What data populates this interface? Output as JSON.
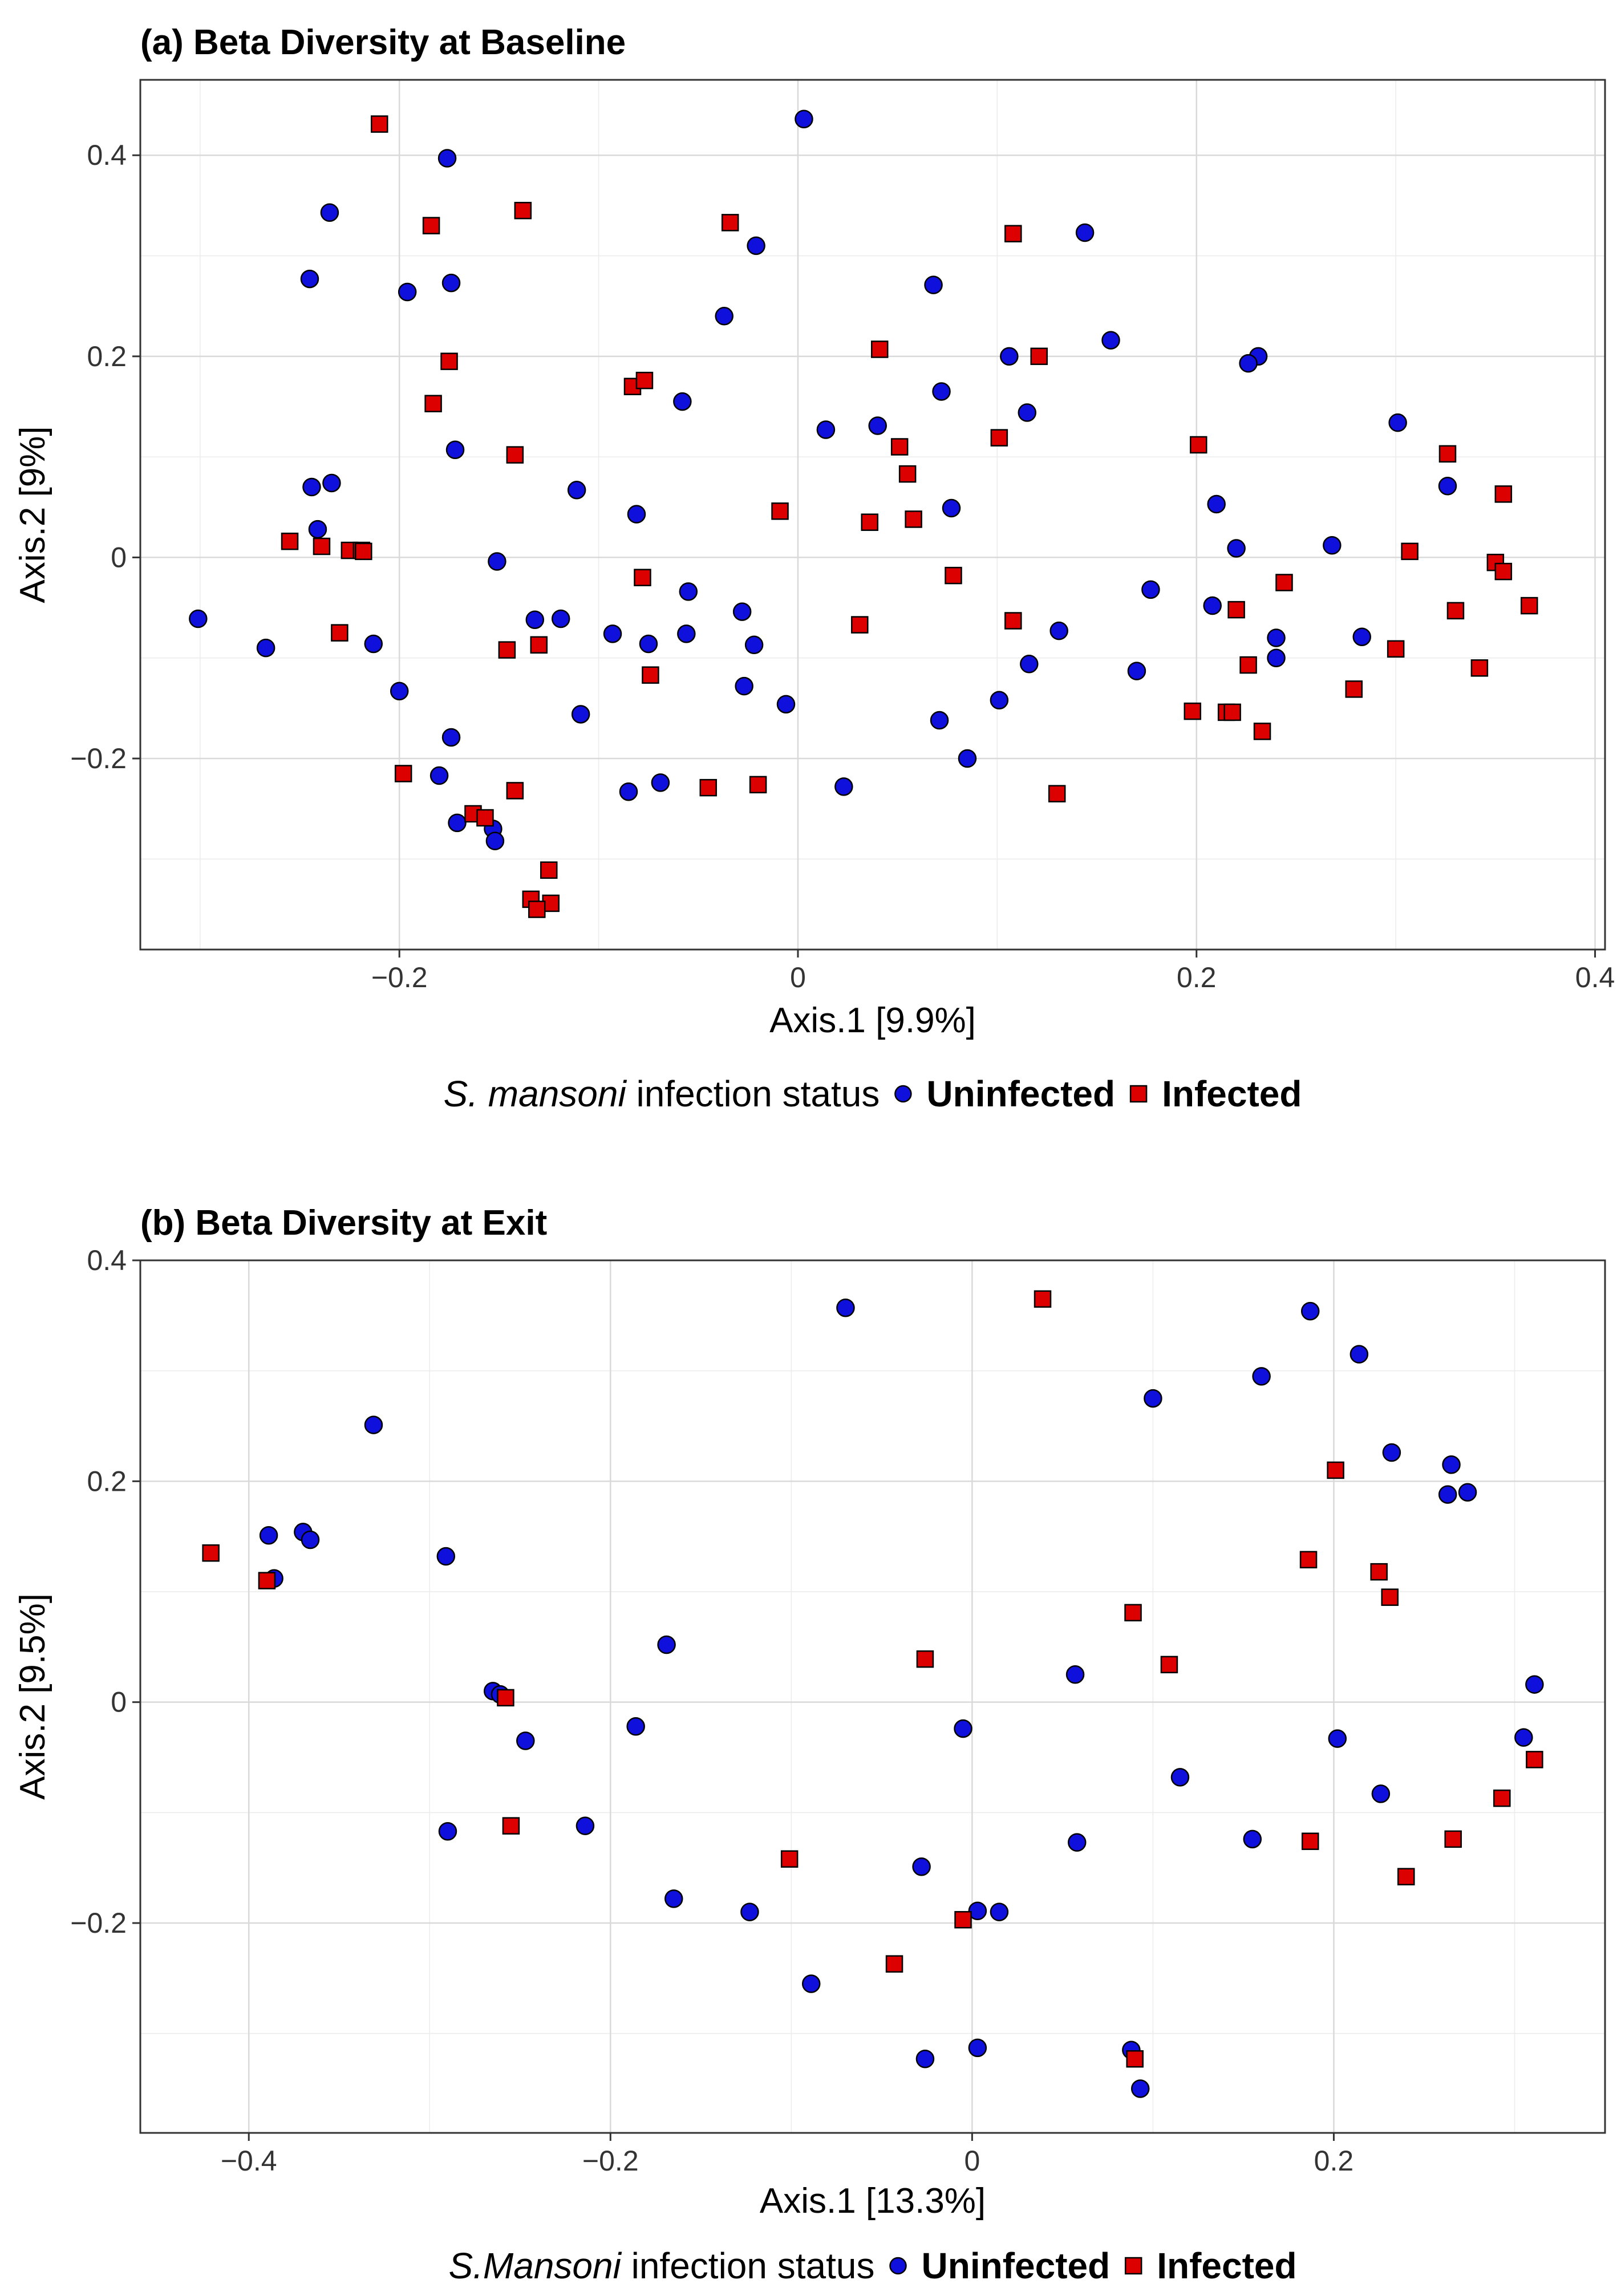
{
  "colors": {
    "uninfected": "#1010dd",
    "infected": "#dd0000",
    "outline": "#000000"
  },
  "chart_data": [
    {
      "type": "scatter",
      "title": "(a) Beta Diversity at Baseline",
      "xlabel": "Axis.1   [9.9%]",
      "ylabel": "Axis.2   [9%]",
      "xlim": [
        -0.33,
        0.405
      ],
      "ylim": [
        -0.39,
        0.475
      ],
      "xticks": [
        -0.2,
        0,
        0.2,
        0.4
      ],
      "xtick_labels": [
        "−0.2",
        "0",
        "0.2",
        "0.4"
      ],
      "yticks": [
        -0.2,
        0,
        0.2,
        0.4
      ],
      "ytick_labels": [
        "−0.2",
        "0",
        "0.2",
        "0.4"
      ],
      "legend": {
        "title_italic": "S. mansoni",
        "title_rest": " infection status",
        "items": [
          "Uninfected",
          "Infected"
        ]
      },
      "series": [
        {
          "name": "Uninfected",
          "marker": "circle",
          "points": [
            [
              0.003,
              0.436
            ],
            [
              -0.176,
              0.397
            ],
            [
              -0.235,
              0.343
            ],
            [
              0.144,
              0.323
            ],
            [
              -0.021,
              0.31
            ],
            [
              -0.245,
              0.277
            ],
            [
              -0.174,
              0.273
            ],
            [
              0.068,
              0.271
            ],
            [
              -0.196,
              0.264
            ],
            [
              -0.037,
              0.24
            ],
            [
              0.157,
              0.216
            ],
            [
              0.106,
              0.2
            ],
            [
              0.231,
              0.2
            ],
            [
              0.226,
              0.193
            ],
            [
              0.072,
              0.165
            ],
            [
              -0.058,
              0.155
            ],
            [
              0.115,
              0.144
            ],
            [
              0.301,
              0.134
            ],
            [
              0.04,
              0.131
            ],
            [
              0.014,
              0.127
            ],
            [
              -0.172,
              0.107
            ],
            [
              -0.244,
              0.07
            ],
            [
              -0.234,
              0.074
            ],
            [
              -0.111,
              0.067
            ],
            [
              0.326,
              0.071
            ],
            [
              0.21,
              0.053
            ],
            [
              0.077,
              0.049
            ],
            [
              -0.081,
              0.043
            ],
            [
              -0.241,
              0.028
            ],
            [
              0.268,
              0.012
            ],
            [
              0.22,
              0.009
            ],
            [
              -0.151,
              -0.004
            ],
            [
              0.177,
              -0.032
            ],
            [
              -0.055,
              -0.034
            ],
            [
              0.208,
              -0.048
            ],
            [
              -0.028,
              -0.054
            ],
            [
              -0.132,
              -0.062
            ],
            [
              -0.119,
              -0.061
            ],
            [
              0.131,
              -0.073
            ],
            [
              -0.093,
              -0.076
            ],
            [
              -0.056,
              -0.076
            ],
            [
              0.24,
              -0.08
            ],
            [
              0.283,
              -0.079
            ],
            [
              -0.075,
              -0.086
            ],
            [
              -0.213,
              -0.086
            ],
            [
              -0.022,
              -0.087
            ],
            [
              -0.301,
              -0.061
            ],
            [
              -0.267,
              -0.09
            ],
            [
              0.24,
              -0.1
            ],
            [
              0.116,
              -0.106
            ],
            [
              0.17,
              -0.113
            ],
            [
              -0.027,
              -0.128
            ],
            [
              -0.2,
              -0.133
            ],
            [
              0.101,
              -0.142
            ],
            [
              -0.006,
              -0.146
            ],
            [
              -0.109,
              -0.156
            ],
            [
              0.071,
              -0.162
            ],
            [
              -0.174,
              -0.179
            ],
            [
              0.085,
              -0.2
            ],
            [
              -0.18,
              -0.217
            ],
            [
              -0.069,
              -0.224
            ],
            [
              0.023,
              -0.228
            ],
            [
              -0.085,
              -0.233
            ],
            [
              -0.171,
              -0.264
            ],
            [
              -0.153,
              -0.27
            ],
            [
              -0.152,
              -0.282
            ]
          ]
        },
        {
          "name": "Infected",
          "marker": "square",
          "points": [
            [
              -0.21,
              0.431
            ],
            [
              -0.138,
              0.345
            ],
            [
              -0.184,
              0.33
            ],
            [
              -0.034,
              0.333
            ],
            [
              0.108,
              0.322
            ],
            [
              0.041,
              0.207
            ],
            [
              0.121,
              0.2
            ],
            [
              -0.175,
              0.195
            ],
            [
              -0.183,
              0.153
            ],
            [
              -0.083,
              0.17
            ],
            [
              -0.077,
              0.176
            ],
            [
              0.101,
              0.119
            ],
            [
              0.201,
              0.112
            ],
            [
              0.051,
              0.11
            ],
            [
              0.326,
              0.103
            ],
            [
              -0.142,
              0.102
            ],
            [
              0.055,
              0.083
            ],
            [
              0.354,
              0.063
            ],
            [
              -0.009,
              0.046
            ],
            [
              0.036,
              0.035
            ],
            [
              0.058,
              0.038
            ],
            [
              -0.255,
              0.016
            ],
            [
              -0.239,
              0.011
            ],
            [
              -0.225,
              0.007
            ],
            [
              -0.219,
              0.007
            ],
            [
              -0.218,
              0.006
            ],
            [
              0.307,
              0.006
            ],
            [
              0.35,
              -0.005
            ],
            [
              0.354,
              -0.014
            ],
            [
              -0.078,
              -0.02
            ],
            [
              0.078,
              -0.018
            ],
            [
              0.244,
              -0.025
            ],
            [
              0.367,
              -0.048
            ],
            [
              0.22,
              -0.052
            ],
            [
              0.33,
              -0.053
            ],
            [
              0.108,
              -0.063
            ],
            [
              0.031,
              -0.067
            ],
            [
              -0.23,
              -0.075
            ],
            [
              -0.13,
              -0.087
            ],
            [
              -0.146,
              -0.092
            ],
            [
              0.3,
              -0.091
            ],
            [
              0.226,
              -0.107
            ],
            [
              0.342,
              -0.11
            ],
            [
              -0.074,
              -0.117
            ],
            [
              0.279,
              -0.131
            ],
            [
              0.198,
              -0.153
            ],
            [
              0.215,
              -0.154
            ],
            [
              0.218,
              -0.154
            ],
            [
              0.233,
              -0.173
            ],
            [
              -0.198,
              -0.215
            ],
            [
              -0.142,
              -0.232
            ],
            [
              -0.045,
              -0.229
            ],
            [
              -0.02,
              -0.226
            ],
            [
              0.13,
              -0.235
            ],
            [
              -0.163,
              -0.255
            ],
            [
              -0.157,
              -0.259
            ],
            [
              -0.125,
              -0.311
            ],
            [
              -0.134,
              -0.34
            ],
            [
              -0.124,
              -0.344
            ],
            [
              -0.131,
              -0.35
            ]
          ]
        }
      ]
    },
    {
      "type": "scatter",
      "title": "(b) Beta Diversity at Exit",
      "xlabel": "Axis.1   [13.3%]",
      "ylabel": "Axis.2   [9.5%]",
      "xlim": [
        -0.46,
        0.35
      ],
      "ylim": [
        -0.39,
        0.4
      ],
      "xticks": [
        -0.4,
        -0.2,
        0,
        0.2
      ],
      "xtick_labels": [
        "−0.4",
        "−0.2",
        "0",
        "0.2"
      ],
      "yticks": [
        -0.2,
        0,
        0.2,
        0.4
      ],
      "ytick_labels": [
        "−0.2",
        "0",
        "0.2",
        "0.4"
      ],
      "legend": {
        "title_italic": "S.Mansoni",
        "title_rest": " infection status",
        "items": [
          "Uninfected",
          "Infected"
        ]
      },
      "series": [
        {
          "name": "Uninfected",
          "marker": "circle",
          "points": [
            [
              -0.07,
              0.357
            ],
            [
              0.187,
              0.354
            ],
            [
              0.214,
              0.315
            ],
            [
              0.16,
              0.295
            ],
            [
              0.1,
              0.275
            ],
            [
              -0.331,
              0.251
            ],
            [
              0.232,
              0.226
            ],
            [
              0.265,
              0.215
            ],
            [
              0.263,
              0.188
            ],
            [
              0.274,
              0.19
            ],
            [
              -0.389,
              0.151
            ],
            [
              -0.37,
              0.154
            ],
            [
              -0.366,
              0.147
            ],
            [
              -0.291,
              0.132
            ],
            [
              -0.386,
              0.112
            ],
            [
              -0.169,
              0.052
            ],
            [
              0.057,
              0.025
            ],
            [
              -0.265,
              0.01
            ],
            [
              0.311,
              0.016
            ],
            [
              -0.261,
              0.007
            ],
            [
              -0.186,
              -0.022
            ],
            [
              0.202,
              -0.033
            ],
            [
              -0.005,
              -0.024
            ],
            [
              -0.247,
              -0.035
            ],
            [
              0.305,
              -0.032
            ],
            [
              0.115,
              -0.068
            ],
            [
              0.226,
              -0.083
            ],
            [
              -0.29,
              -0.117
            ],
            [
              -0.214,
              -0.112
            ],
            [
              0.058,
              -0.127
            ],
            [
              0.155,
              -0.124
            ],
            [
              -0.028,
              -0.149
            ],
            [
              -0.165,
              -0.178
            ],
            [
              -0.123,
              -0.19
            ],
            [
              0.003,
              -0.189
            ],
            [
              0.015,
              -0.19
            ],
            [
              -0.089,
              -0.255
            ],
            [
              0.003,
              -0.313
            ],
            [
              -0.026,
              -0.323
            ],
            [
              0.088,
              -0.315
            ],
            [
              0.093,
              -0.35
            ]
          ]
        },
        {
          "name": "Infected",
          "marker": "square",
          "points": [
            [
              0.039,
              0.365
            ],
            [
              0.201,
              0.21
            ],
            [
              -0.421,
              0.135
            ],
            [
              -0.39,
              0.11
            ],
            [
              0.186,
              0.129
            ],
            [
              0.225,
              0.118
            ],
            [
              0.231,
              0.095
            ],
            [
              0.089,
              0.081
            ],
            [
              -0.026,
              0.039
            ],
            [
              0.109,
              0.034
            ],
            [
              -0.258,
              0.004
            ],
            [
              0.311,
              -0.052
            ],
            [
              0.293,
              -0.087
            ],
            [
              -0.255,
              -0.112
            ],
            [
              0.187,
              -0.126
            ],
            [
              0.266,
              -0.124
            ],
            [
              -0.101,
              -0.142
            ],
            [
              0.24,
              -0.158
            ],
            [
              -0.005,
              -0.197
            ],
            [
              -0.043,
              -0.237
            ],
            [
              0.09,
              -0.323
            ]
          ]
        }
      ]
    }
  ]
}
